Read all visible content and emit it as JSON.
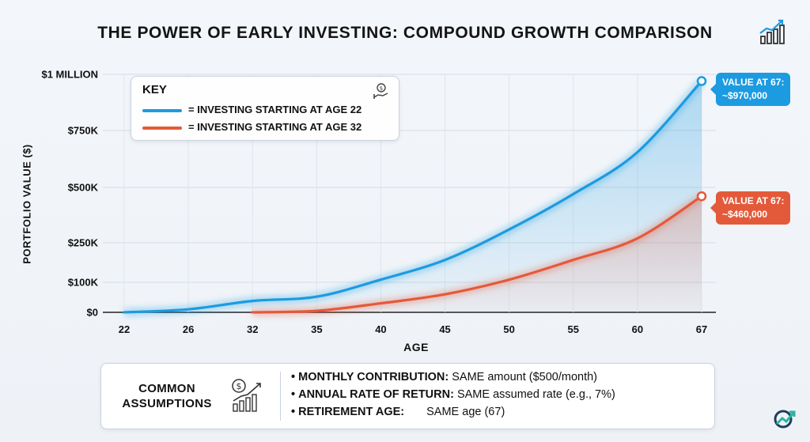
{
  "title": "THE POWER OF EARLY INVESTING: COMPOUND GROWTH COMPARISON",
  "icons": {
    "title": "growth-chart-icon",
    "key": "money-hand-icon",
    "assumptions": "dollar-chart-icon",
    "corner": "brand-logo-icon"
  },
  "colors": {
    "early": "#1c9be0",
    "late": "#e35a3a",
    "text": "#111111"
  },
  "key": {
    "title": "KEY",
    "early_label": "= INVESTING STARTING AT AGE 22",
    "late_label": "= INVESTING STARTING AT AGE 32"
  },
  "callouts": {
    "early": {
      "line1": "VALUE AT 67:",
      "line2": "~$970,000"
    },
    "late": {
      "line1": "VALUE AT 67:",
      "line2": "~$460,000"
    }
  },
  "assumptions": {
    "title_line1": "COMMON",
    "title_line2": "ASSUMPTIONS",
    "items": [
      {
        "bullet": "•",
        "label": "MONTHLY CONTRIBUTION:",
        "value": "SAME amount ($500/month)"
      },
      {
        "bullet": "•",
        "label": "ANNUAL RATE OF RETURN:",
        "value": "SAME assumed rate (e.g., 7%)"
      },
      {
        "bullet": "•",
        "label": "RETIREMENT AGE:",
        "value": "SAME age (67)"
      }
    ]
  },
  "chart_data": {
    "type": "area",
    "title": "THE POWER OF EARLY INVESTING: COMPOUND GROWTH COMPARISON",
    "xlabel": "AGE",
    "ylabel": "PORTFOLIO VALUE ($)",
    "x_ticks": [
      22,
      26,
      32,
      35,
      40,
      45,
      50,
      55,
      60,
      67
    ],
    "y_ticks": [
      {
        "value": 0,
        "label": "$0"
      },
      {
        "value": 100000,
        "label": "$100K"
      },
      {
        "value": 250000,
        "label": "$250K"
      },
      {
        "value": 500000,
        "label": "$500K"
      },
      {
        "value": 750000,
        "label": "$750K"
      },
      {
        "value": 1000000,
        "label": "$1 MILLION"
      }
    ],
    "ylim": [
      0,
      1000000
    ],
    "grid": true,
    "legend_position": "top-left",
    "series": [
      {
        "name": "INVESTING STARTING AT AGE 22",
        "color": "#1c9be0",
        "x": [
          22,
          26,
          32,
          35,
          40,
          45,
          50,
          55,
          60,
          67
        ],
        "y": [
          0,
          10000,
          38000,
          52000,
          110000,
          185000,
          310000,
          470000,
          655000,
          970000
        ]
      },
      {
        "name": "INVESTING STARTING AT AGE 32",
        "color": "#e35a3a",
        "x": [
          32,
          35,
          40,
          45,
          50,
          55,
          60,
          67
        ],
        "y": [
          0,
          5000,
          30000,
          60000,
          110000,
          185000,
          270000,
          460000
        ]
      }
    ]
  }
}
